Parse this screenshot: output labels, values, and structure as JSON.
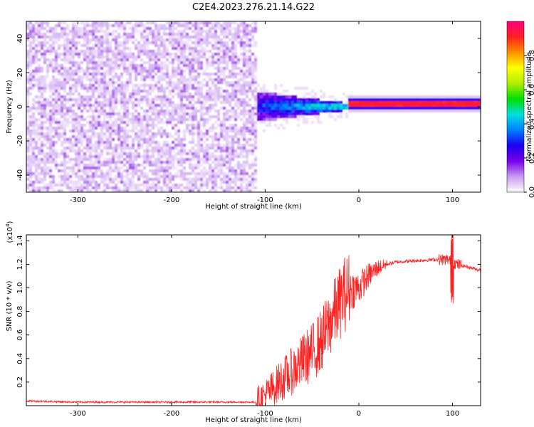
{
  "title": "C2E4.2023.276.21.14.G22",
  "chart_data": [
    {
      "type": "heatmap",
      "title": "C2E4.2023.276.21.14.G22",
      "xlabel": "Height of straight line (km)",
      "ylabel": "Frequency (Hz)",
      "xlim": [
        -355,
        130
      ],
      "ylim": [
        -50,
        50
      ],
      "x_ticks": [
        -300,
        -200,
        -100,
        0,
        100
      ],
      "y_ticks": [
        -40,
        -20,
        0,
        20,
        40
      ],
      "colorbar": {
        "label": "Normalized spectral amplitude",
        "range": [
          0.0,
          1.0
        ],
        "ticks": [
          0.0,
          0.2,
          0.4,
          0.6,
          0.8
        ],
        "colors": [
          "#ffffff",
          "#c89cf0",
          "#7a00e8",
          "#1a00f0",
          "#0080ff",
          "#00e0e0",
          "#00e000",
          "#b0ee00",
          "#ffff00",
          "#ff9000",
          "#ff2020",
          "#ff0080"
        ]
      },
      "regions": [
        {
          "name": "noise",
          "x_range": [
            -355,
            -110
          ],
          "freq_range": [
            -50,
            50
          ],
          "amplitude": 0.1
        },
        {
          "name": "transition",
          "x_range": [
            -110,
            -10
          ],
          "freq_center": 0,
          "freq_halfwidth_start": 9,
          "freq_halfwidth_end": 2,
          "amplitude_start": 0.3,
          "amplitude_end": 0.55
        },
        {
          "name": "signal_line",
          "x_range": [
            -10,
            130
          ],
          "freq_center": 1.5,
          "freq_halfwidth": 1.5,
          "amplitude": 0.92
        }
      ]
    },
    {
      "type": "line",
      "xlabel": "Height of straight line (km)",
      "ylabel": "SNR (10 * v/v)",
      "multiplier_label": "(x10",
      "multiplier_exponent": "4",
      "multiplier_close": ")",
      "xlim": [
        -355,
        130
      ],
      "ylim": [
        0.0,
        1.45
      ],
      "x_ticks": [
        -300,
        -200,
        -100,
        0,
        100
      ],
      "y_ticks": [
        0.2,
        0.4,
        0.6,
        0.8,
        1.0,
        1.2,
        1.4
      ],
      "color": "#ff2020",
      "series": [
        {
          "name": "SNR",
          "x": [
            -355,
            -300,
            -200,
            -110,
            -95,
            -85,
            -70,
            -60,
            -50,
            -40,
            -30,
            -20,
            -15,
            -10,
            0,
            10,
            20,
            30,
            40,
            60,
            80,
            95,
            100,
            105,
            115,
            130
          ],
          "values": [
            0.04,
            0.03,
            0.03,
            0.03,
            0.12,
            0.2,
            0.3,
            0.38,
            0.45,
            0.55,
            0.72,
            0.88,
            0.95,
            0.98,
            1.0,
            1.1,
            1.17,
            1.2,
            1.22,
            1.23,
            1.24,
            1.24,
            1.22,
            1.2,
            1.18,
            1.15
          ]
        }
      ]
    }
  ]
}
